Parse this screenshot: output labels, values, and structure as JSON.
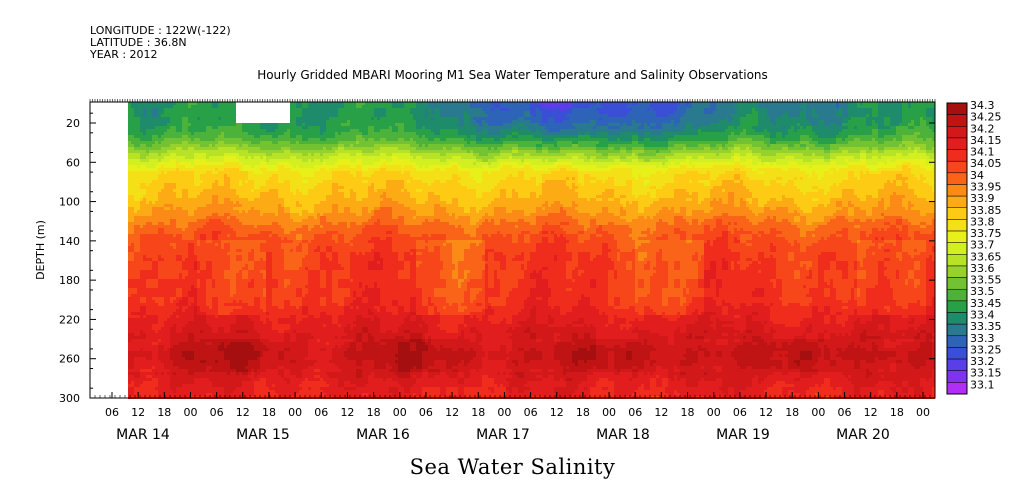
{
  "header": {
    "longitude": "LONGITUDE : 122W(-122)",
    "latitude": "LATITUDE : 36.8N",
    "year": "YEAR : 2012"
  },
  "title": "Hourly Gridded MBARI Mooring M1 Sea Water Temperature and Salinity Observations",
  "bottom_title": "Sea Water Salinity",
  "chart_data": {
    "type": "heatmap",
    "title": "Hourly Gridded MBARI Mooring M1 Sea Water Temperature and Salinity Observations",
    "variable": "Sea Water Salinity",
    "ylabel": "DEPTH (m)",
    "xlabel": "",
    "ylim": [
      300,
      0
    ],
    "y_ticks": [
      20,
      60,
      100,
      140,
      180,
      220,
      260,
      300
    ],
    "x_hour_ticks": [
      "06",
      "12",
      "18",
      "00",
      "06",
      "12",
      "18",
      "00",
      "06",
      "12",
      "18",
      "00",
      "06",
      "12",
      "18",
      "00",
      "06",
      "12",
      "18",
      "00",
      "06",
      "12",
      "18",
      "00",
      "06",
      "12",
      "18",
      "00",
      "06",
      "12",
      "18",
      "00"
    ],
    "x_day_labels": [
      "MAR 14",
      "MAR 15",
      "MAR 16",
      "MAR 17",
      "MAR 18",
      "MAR 19",
      "MAR 20"
    ],
    "x_range": [
      "2012-03-13 03:00",
      "2012-03-21 00:00"
    ],
    "data_start": "2012-03-14 06:00",
    "colorbar_levels": [
      "34.3",
      "34.25",
      "34.2",
      "34.15",
      "34.1",
      "34.05",
      "34",
      "33.95",
      "33.9",
      "33.85",
      "33.8",
      "33.75",
      "33.7",
      "33.65",
      "33.6",
      "33.55",
      "33.5",
      "33.45",
      "33.4",
      "33.35",
      "33.3",
      "33.25",
      "33.2",
      "33.15",
      "33.1"
    ],
    "colorbar_colors": [
      "#a50f0f",
      "#c01313",
      "#d21818",
      "#e21d1d",
      "#f02c1c",
      "#f7461a",
      "#fa6418",
      "#fb8a16",
      "#fdab14",
      "#fecb14",
      "#f4e016",
      "#e8f01a",
      "#d2ef22",
      "#b8e226",
      "#96d12c",
      "#73c231",
      "#4db23a",
      "#28a047",
      "#1e8c6a",
      "#2a7a8f",
      "#2e64b8",
      "#3a4fd6",
      "#5a3fe8",
      "#7f33ef",
      "#b02ef5"
    ],
    "depth_profile": [
      {
        "depth": 8,
        "value": 33.45
      },
      {
        "depth": 20,
        "value": 33.5
      },
      {
        "depth": 35,
        "value": 33.6
      },
      {
        "depth": 50,
        "value": 33.75
      },
      {
        "depth": 65,
        "value": 33.82
      },
      {
        "depth": 80,
        "value": 33.86
      },
      {
        "depth": 95,
        "value": 33.9
      },
      {
        "depth": 110,
        "value": 33.95
      },
      {
        "depth": 125,
        "value": 34.02
      },
      {
        "depth": 140,
        "value": 34.07
      },
      {
        "depth": 160,
        "value": 34.1
      },
      {
        "depth": 200,
        "value": 34.12
      },
      {
        "depth": 220,
        "value": 34.17
      },
      {
        "depth": 240,
        "value": 34.22
      },
      {
        "depth": 255,
        "value": 34.27
      },
      {
        "depth": 265,
        "value": 34.25
      },
      {
        "depth": 285,
        "value": 34.18
      },
      {
        "depth": 300,
        "value": 34.15
      }
    ],
    "surface_events": [
      {
        "day": 0.3,
        "value": 33.45
      },
      {
        "day": 1.5,
        "value": 33.45
      },
      {
        "day": 2.0,
        "value": 33.45
      },
      {
        "day": 2.7,
        "value": 33.4
      },
      {
        "day": 3.3,
        "value": 33.3
      },
      {
        "day": 3.7,
        "value": 33.2
      },
      {
        "day": 4.0,
        "value": 33.3
      },
      {
        "day": 4.8,
        "value": 33.3
      },
      {
        "day": 5.3,
        "value": 33.4
      },
      {
        "day": 6.2,
        "value": 33.4
      },
      {
        "day": 6.8,
        "value": 33.45
      }
    ]
  }
}
